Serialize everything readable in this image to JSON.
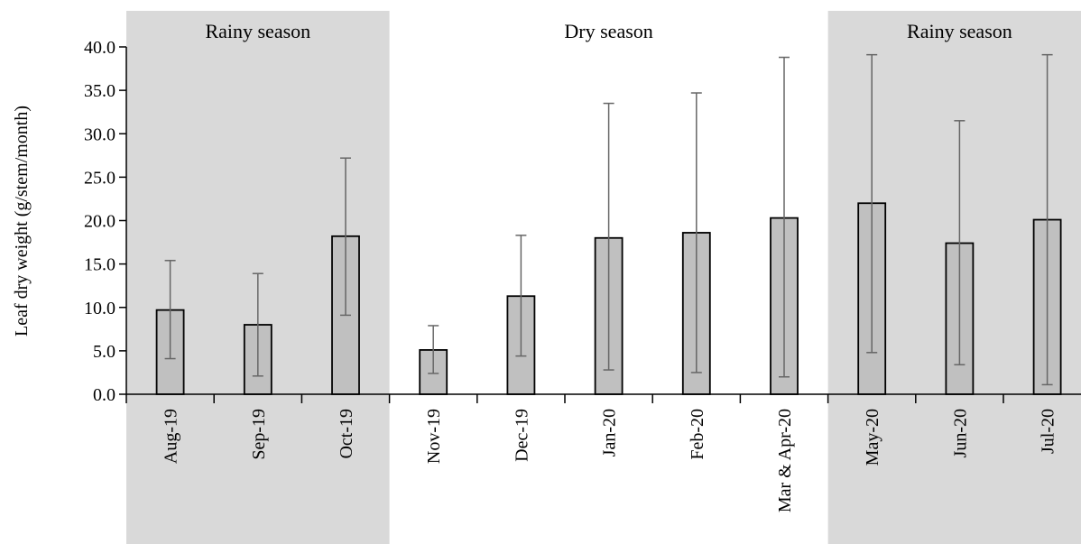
{
  "chart_data": {
    "type": "bar",
    "ylabel": "Leaf dry weight (g/stem/month)",
    "ylim": [
      0,
      40
    ],
    "yticks": [
      "0.0",
      "5.0",
      "10.0",
      "15.0",
      "20.0",
      "25.0",
      "30.0",
      "35.0",
      "40.0"
    ],
    "categories": [
      "Aug-19",
      "Sep-19",
      "Oct-19",
      "Nov-19",
      "Dec-19",
      "Jan-20",
      "Feb-20",
      "Mar & Apr-20",
      "May-20",
      "Jun-20",
      "Jul-20"
    ],
    "values": [
      9.7,
      8.0,
      18.2,
      5.1,
      11.3,
      18.0,
      18.6,
      20.3,
      22.0,
      17.4,
      20.1
    ],
    "error_low": [
      4.1,
      2.1,
      9.1,
      2.4,
      4.4,
      2.8,
      2.5,
      2.0,
      4.8,
      3.4,
      1.1
    ],
    "error_high": [
      15.4,
      13.9,
      27.2,
      7.9,
      18.3,
      33.5,
      34.7,
      38.8,
      39.1,
      31.5,
      39.1
    ],
    "bar_color": "#c0c0c0",
    "season_shade_color": "#d9d9d9",
    "seasons": [
      {
        "label": "Rainy season",
        "start": 0,
        "end": 2,
        "shaded": true
      },
      {
        "label": "Dry season",
        "start": 3,
        "end": 7,
        "shaded": false
      },
      {
        "label": "Rainy season",
        "start": 8,
        "end": 10,
        "shaded": true
      }
    ]
  }
}
